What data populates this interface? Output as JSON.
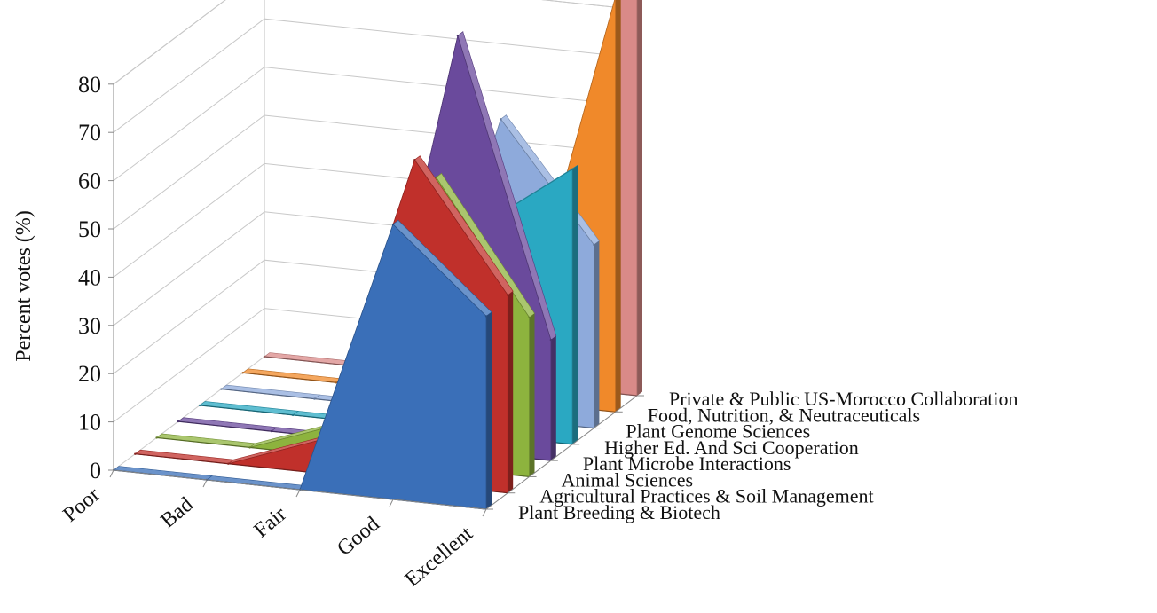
{
  "chart_data": {
    "type": "area",
    "subtype": "3d-area",
    "ylabel": "Percent votes (%)",
    "xlabel": "",
    "ylim": [
      0,
      80
    ],
    "yticks": [
      0,
      10,
      20,
      30,
      40,
      50,
      60,
      70,
      80
    ],
    "categories": [
      "Poor",
      "Bad",
      "Fair",
      "Good",
      "Excellent"
    ],
    "grid": true,
    "series": [
      {
        "name": "Plant Breeding & Biotech",
        "color": "#3a6fb8",
        "values": [
          0,
          0,
          0,
          57,
          40
        ]
      },
      {
        "name": "Agricultural Practices & Soil Management",
        "color": "#c0302b",
        "values": [
          0,
          0,
          7,
          67,
          41
        ]
      },
      {
        "name": "Animal Sciences",
        "color": "#8db33e",
        "values": [
          0,
          0,
          7,
          60,
          33
        ]
      },
      {
        "name": "Plant Microbe Interactions",
        "color": "#6a4a9c",
        "values": [
          0,
          0,
          0,
          86,
          25
        ]
      },
      {
        "name": "Higher Ed. And Sci Cooperation",
        "color": "#2aa8c2",
        "values": [
          0,
          0,
          0,
          43,
          57
        ]
      },
      {
        "name": "Plant Genome Sciences",
        "color": "#8eaadb",
        "values": [
          0,
          0,
          0,
          62,
          38
        ]
      },
      {
        "name": "Food, Nutrition, & Neutraceuticals",
        "color": "#f0892a",
        "values": [
          0,
          0,
          0,
          14,
          86
        ]
      },
      {
        "name": "Private & Public US-Morocco Collaboration",
        "color": "#d98a88",
        "values": [
          0,
          0,
          0,
          0,
          100
        ]
      }
    ]
  }
}
